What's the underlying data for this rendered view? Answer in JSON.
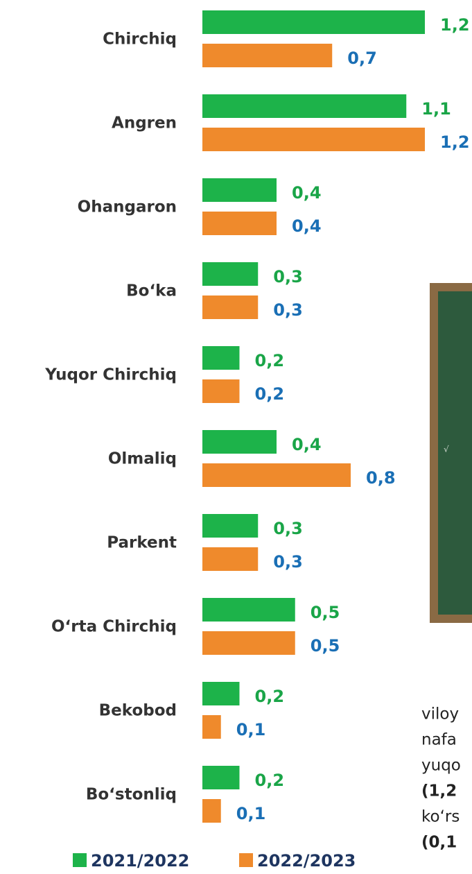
{
  "chart_data": {
    "type": "hbar",
    "categories": [
      "Chirchiq",
      "Angren",
      "Ohangaron",
      "Bo‘ka",
      "Yuqor Chirchiq",
      "Olmaliq",
      "Parkent",
      "O‘rta Chirchiq",
      "Bekobod",
      "Bo‘stonliq"
    ],
    "series": [
      {
        "name": "2021/2022",
        "color": "#1db34a",
        "label_color": "#1aa548",
        "values": [
          1.2,
          1.1,
          0.4,
          0.3,
          0.2,
          0.4,
          0.3,
          0.5,
          0.2,
          0.2
        ],
        "value_labels": [
          "1,2",
          "1,1",
          "0,4",
          "0,3",
          "0,2",
          "0,4",
          "0,3",
          "0,5",
          "0,2",
          "0,2"
        ]
      },
      {
        "name": "2022/2023",
        "color": "#ef8a2c",
        "label_color": "#1a6fb5",
        "values": [
          0.7,
          1.2,
          0.4,
          0.3,
          0.2,
          0.8,
          0.3,
          0.5,
          0.1,
          0.1
        ],
        "value_labels": [
          "0,7",
          "1,2",
          "0,4",
          "0,3",
          "0,2",
          "0,8",
          "0,3",
          "0,5",
          "0,1",
          "0,1"
        ]
      }
    ],
    "legend": "bottom"
  },
  "side_text": [
    "viloy",
    "nafa",
    "yuqo",
    "(1,2",
    "ko‘rs",
    "(0,1"
  ]
}
